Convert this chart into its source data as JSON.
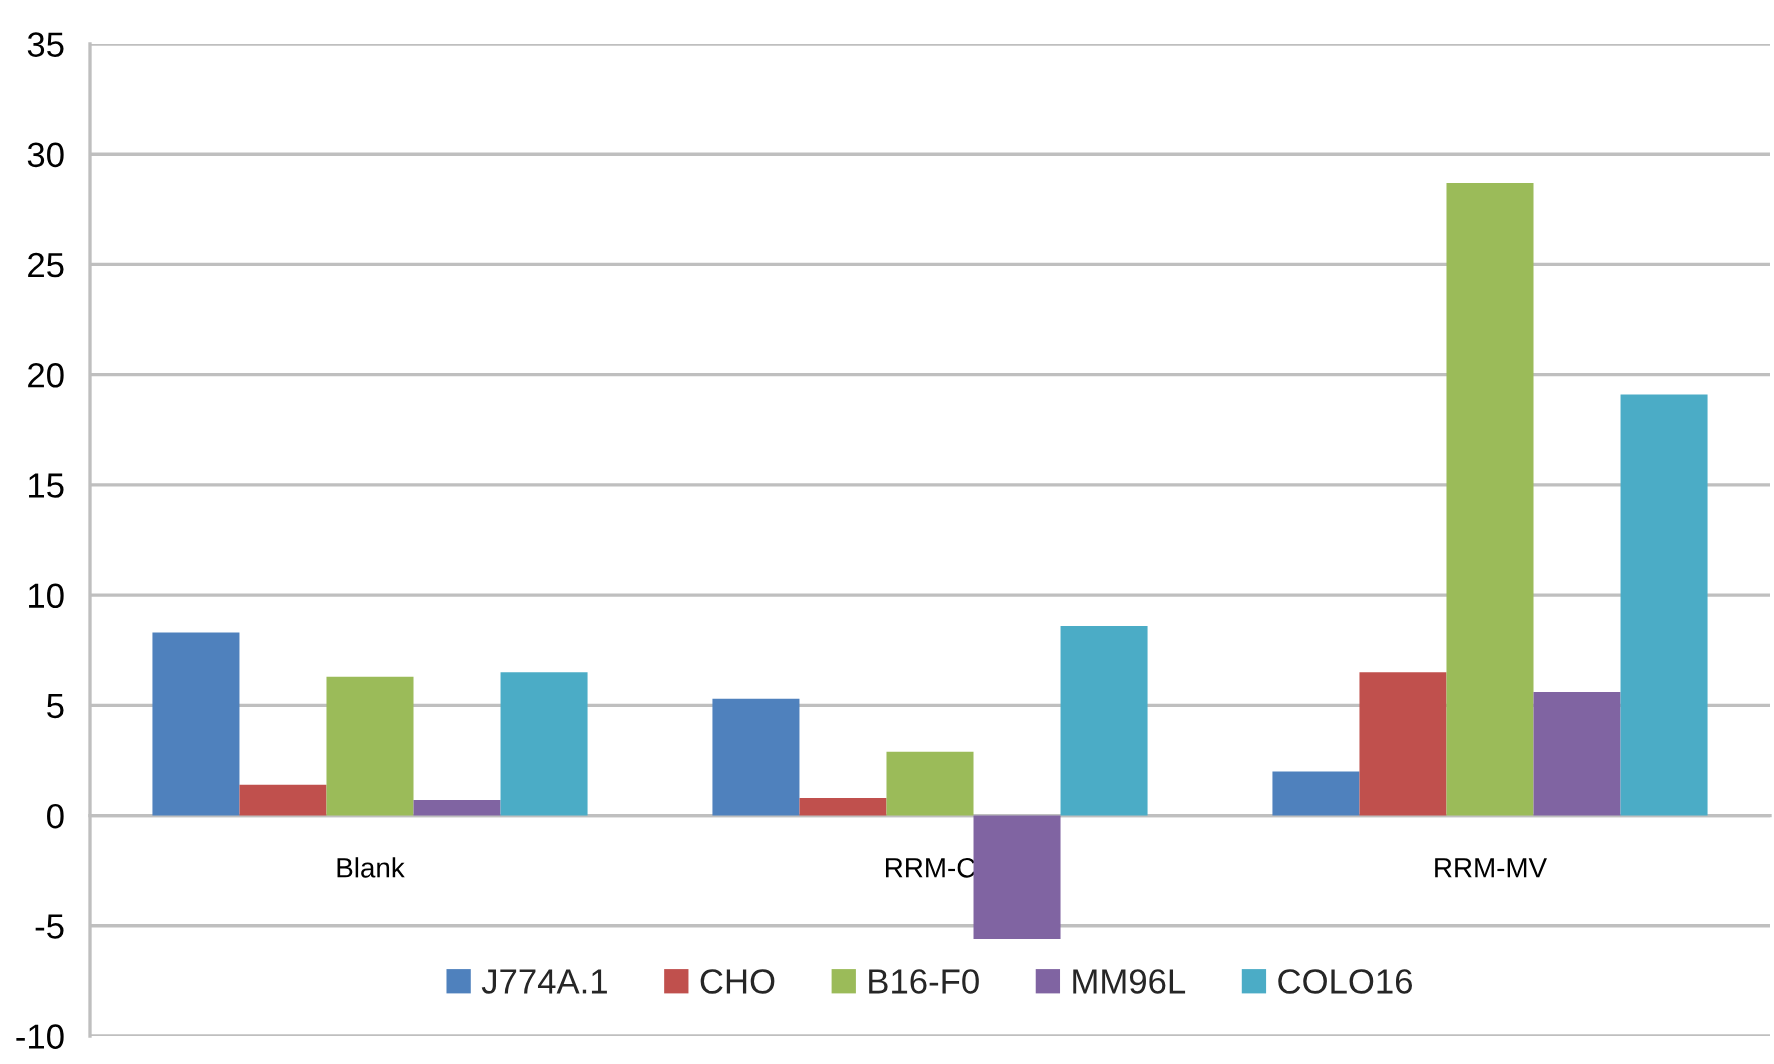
{
  "chart_data": {
    "type": "bar",
    "categories": [
      "Blank",
      "RRM-C",
      "RRM-MV"
    ],
    "series": [
      {
        "name": "J774A.1",
        "color": "#4f81bd",
        "values": [
          8.3,
          5.3,
          2.0
        ]
      },
      {
        "name": "CHO",
        "color": "#c0504d",
        "values": [
          1.4,
          0.8,
          6.5
        ]
      },
      {
        "name": "B16-F0",
        "color": "#9bbb59",
        "values": [
          6.3,
          2.9,
          28.7
        ]
      },
      {
        "name": "MM96L",
        "color": "#8064a2",
        "values": [
          0.7,
          -5.6,
          5.6
        ]
      },
      {
        "name": "COLO16",
        "color": "#4bacc6",
        "values": [
          6.5,
          8.6,
          19.1
        ]
      }
    ],
    "ylim": [
      -10,
      35
    ],
    "yticks": [
      -10,
      -5,
      0,
      5,
      10,
      15,
      20,
      25,
      30,
      35
    ],
    "grid": "y",
    "legend": "bottom"
  }
}
